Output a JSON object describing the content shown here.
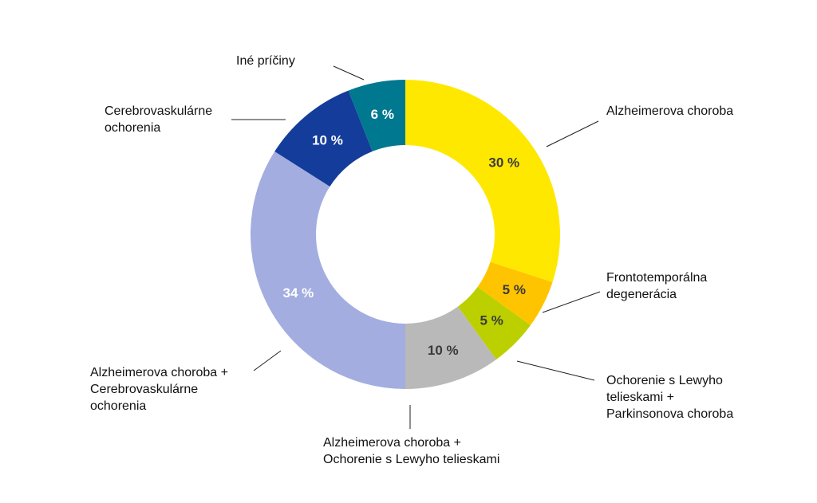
{
  "chart_data": {
    "type": "pie",
    "variant": "donut",
    "unit": "%",
    "slices": [
      {
        "label": "Alzheimerova choroba",
        "value": 30,
        "value_label": "30 %",
        "color": "#ffe800",
        "text_color": "#3a3a3a"
      },
      {
        "label": "Frontotemporálna degenerácia",
        "value": 5,
        "value_label": "5 %",
        "color": "#ffc400",
        "text_color": "#3a3a3a"
      },
      {
        "label": "Ochorenie s Lewyho telieskami + Parkinsonova choroba",
        "value": 5,
        "value_label": "5 %",
        "color": "#bcd000",
        "text_color": "#3a3a3a"
      },
      {
        "label": "Alzheimerova choroba + Ochorenie s Lewyho telieskami",
        "value": 10,
        "value_label": "10 %",
        "color": "#b9b9b9",
        "text_color": "#3a3a3a"
      },
      {
        "label": "Alzheimerova choroba + Cerebrovaskulárne ochorenia",
        "value": 34,
        "value_label": "34 %",
        "color": "#a3addf",
        "text_color": "#ffffff"
      },
      {
        "label": "Cerebrovaskulárne ochorenia",
        "value": 10,
        "value_label": "10 %",
        "color": "#143c9b",
        "text_color": "#ffffff"
      },
      {
        "label": "Iné príčiny",
        "value": 6,
        "value_label": "6 %",
        "color": "#00788f",
        "text_color": "#ffffff"
      }
    ],
    "start": "top",
    "direction": "clockwise",
    "legend": "none"
  },
  "labels": {
    "alz": [
      "Alzheimerova choroba"
    ],
    "ftd": [
      "Frontotemporálna",
      "degenerácia"
    ],
    "lewy_park": [
      "Ochorenie s Lewyho",
      "telieskami +",
      "Parkinsonova choroba"
    ],
    "alz_lewy": [
      "Alzheimerova choroba +",
      "Ochorenie s Lewyho telieskami"
    ],
    "alz_cvd": [
      "Alzheimerova choroba +",
      "Cerebrovaskulárne",
      "ochorenia"
    ],
    "cvd": [
      "Cerebrovaskulárne",
      "ochorenia"
    ],
    "other": [
      "Iné príčiny"
    ]
  }
}
